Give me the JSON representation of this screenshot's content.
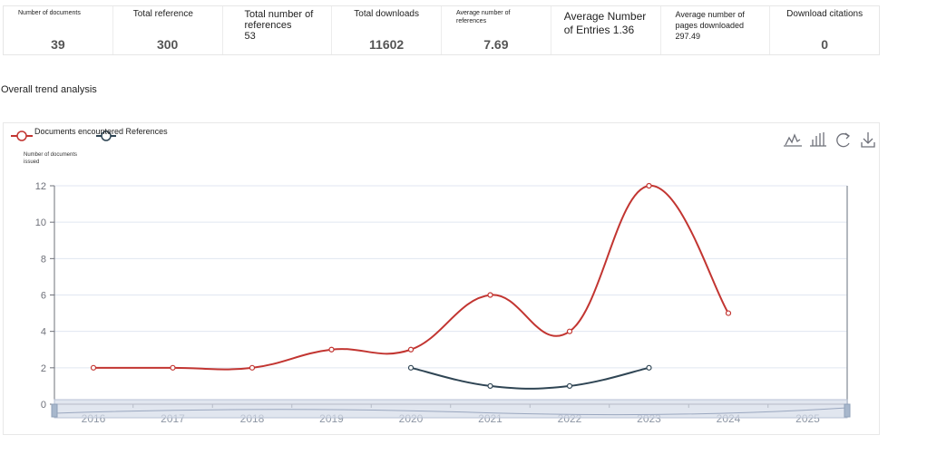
{
  "stats": [
    {
      "label": "Number of documents",
      "value": "39"
    },
    {
      "label": "Total reference",
      "value": "300"
    },
    {
      "label": "Total number of references",
      "value": "53"
    },
    {
      "label": "Total downloads",
      "value": "11602"
    },
    {
      "label": "Average number of references",
      "value": "7.69"
    },
    {
      "label": "Average Number of Entries",
      "value": "1.36"
    },
    {
      "label": "Average number of pages downloaded",
      "value": "297.49"
    },
    {
      "label": "Download citations",
      "value": "0"
    }
  ],
  "section_title": "Overall trend analysis",
  "toolbar": {
    "icons": [
      "line-chart-icon",
      "bar-chart-icon",
      "refresh-icon",
      "download-icon"
    ]
  },
  "colors": {
    "documents": "#c23531",
    "references": "#2f4554",
    "grid": "#e0e6f1",
    "axis": "#6e7079"
  },
  "chart_data": {
    "type": "line",
    "title": "",
    "ylabel": "Number of documents issued",
    "xlabel": "",
    "legend_placement": "top-left",
    "grid": true,
    "categories": [
      "2016",
      "2017",
      "2018",
      "2019",
      "2020",
      "2021",
      "2022",
      "2023",
      "2024",
      "2025"
    ],
    "ylim": [
      0,
      12
    ],
    "yticks": [
      0,
      2,
      4,
      6,
      8,
      10,
      12
    ],
    "legend_label": "Documents encountered References",
    "series": [
      {
        "values": [
          2,
          2,
          2,
          3,
          3,
          6,
          4,
          12,
          5,
          null
        ]
      },
      {
        "values": [
          null,
          null,
          null,
          null,
          2,
          1,
          1,
          2,
          null,
          null
        ]
      }
    ]
  }
}
